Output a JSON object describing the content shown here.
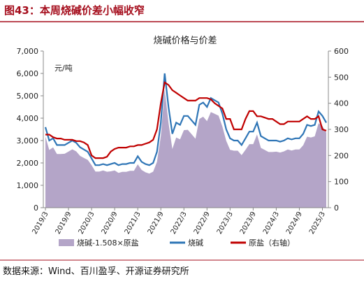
{
  "header": {
    "title": "图43：本周烧碱价差小幅收窄"
  },
  "source": "数据来源：Wind、百川盈孚、开源证券研究所",
  "chart_data": {
    "type": "line",
    "title": "烧碱价格与价差",
    "y_unit": "元/吨",
    "x": [
      "2019/3",
      "2019/4",
      "2019/5",
      "2019/6",
      "2019/7",
      "2019/8",
      "2019/9",
      "2019/10",
      "2019/11",
      "2019/12",
      "2020/1",
      "2020/2",
      "2020/3",
      "2020/4",
      "2020/5",
      "2020/6",
      "2020/7",
      "2020/8",
      "2020/9",
      "2020/10",
      "2020/11",
      "2020/12",
      "2021/1",
      "2021/2",
      "2021/3",
      "2021/4",
      "2021/5",
      "2021/6",
      "2021/7",
      "2021/8",
      "2021/9",
      "2021/10",
      "2021/11",
      "2021/12",
      "2022/1",
      "2022/2",
      "2022/3",
      "2022/4",
      "2022/5",
      "2022/6",
      "2022/7",
      "2022/8",
      "2022/9",
      "2022/10",
      "2022/11",
      "2022/12",
      "2023/1",
      "2023/2",
      "2023/3",
      "2023/4",
      "2023/5",
      "2023/6",
      "2023/7",
      "2023/8",
      "2023/9",
      "2023/10",
      "2023/11",
      "2023/12",
      "2024/1",
      "2024/2",
      "2024/3",
      "2024/4",
      "2024/5",
      "2024/6",
      "2024/7",
      "2024/8",
      "2024/9",
      "2024/10",
      "2024/11",
      "2024/12",
      "2025/1",
      "2025/2",
      "2025/3",
      "2025/4"
    ],
    "xticks": [
      "2019/3",
      "2019/9",
      "2020/3",
      "2020/9",
      "2021/3",
      "2021/9",
      "2022/3",
      "2022/9",
      "2023/3",
      "2023/9",
      "2024/3",
      "2024/9",
      "2025/3"
    ],
    "ylim": [
      0,
      7000
    ],
    "yticks": [
      0,
      {
        "value": 1000,
        "label": "1,000"
      },
      {
        "value": 2000,
        "label": "2,000"
      },
      {
        "value": 3000,
        "label": "3,000"
      },
      {
        "value": 4000,
        "label": "4,000"
      },
      {
        "value": 5000,
        "label": "5,000"
      },
      {
        "value": 6000,
        "label": "6,000"
      },
      {
        "value": 7000,
        "label": "7,000"
      }
    ],
    "y2lim": [
      0,
      600
    ],
    "y2ticks": [
      0,
      100,
      200,
      300,
      400,
      500,
      600
    ],
    "legend": "bottom",
    "series": [
      {
        "name": "烧碱-1.508×原盐",
        "type": "area",
        "color": "#b4a5c8",
        "values": [
          3178,
          2578,
          2693,
          2400,
          2400,
          2408,
          2508,
          2608,
          2515,
          2315,
          2223,
          2138,
          1898,
          1613,
          1613,
          1663,
          1606,
          1626,
          1661,
          1553,
          1603,
          1603,
          1646,
          1646,
          1938,
          1688,
          1581,
          1523,
          1608,
          2048,
          3197,
          5276,
          3791,
          2621,
          3136,
          3052,
          3467,
          3482,
          3282,
          3082,
          3967,
          4067,
          3867,
          4274,
          4197,
          4112,
          3627,
          2987,
          2587,
          2548,
          2548,
          2348,
          2587,
          2842,
          2842,
          3272,
          2672,
          2580,
          2487,
          2487,
          2502,
          2467,
          2517,
          2602,
          2552,
          2602,
          2602,
          2787,
          3172,
          3137,
          3187,
          3772,
          3648,
          3355
        ]
      },
      {
        "name": "烧碱",
        "type": "line",
        "color": "#2e75b6",
        "values": [
          3600,
          3000,
          3100,
          2800,
          2800,
          2800,
          2900,
          3000,
          2900,
          2700,
          2600,
          2500,
          2200,
          1900,
          1900,
          1950,
          1900,
          1950,
          2000,
          1900,
          1950,
          1950,
          2000,
          2000,
          2300,
          2050,
          1950,
          1900,
          2000,
          2500,
          3800,
          6000,
          4500,
          3300,
          3800,
          3700,
          4100,
          4100,
          3900,
          3700,
          4600,
          4700,
          4500,
          4900,
          4800,
          4700,
          4200,
          3500,
          3100,
          3000,
          3000,
          2800,
          3100,
          3400,
          3400,
          3800,
          3200,
          3100,
          3000,
          3000,
          3000,
          2950,
          3000,
          3100,
          3050,
          3100,
          3100,
          3300,
          3700,
          3650,
          3700,
          4300,
          4100,
          3800
        ]
      },
      {
        "name": "原盐（右轴）",
        "type": "line",
        "axis": "y2",
        "color": "#c00000",
        "values": [
          280,
          280,
          270,
          265,
          265,
          260,
          260,
          260,
          255,
          255,
          250,
          240,
          200,
          190,
          190,
          190,
          195,
          215,
          225,
          230,
          230,
          230,
          235,
          235,
          240,
          240,
          245,
          250,
          260,
          300,
          400,
          480,
          470,
          450,
          440,
          430,
          420,
          410,
          410,
          410,
          420,
          420,
          420,
          415,
          400,
          390,
          380,
          340,
          340,
          300,
          300,
          300,
          340,
          370,
          370,
          350,
          350,
          345,
          340,
          340,
          330,
          320,
          320,
          330,
          330,
          330,
          330,
          340,
          350,
          340,
          340,
          350,
          300,
          295
        ]
      }
    ]
  }
}
